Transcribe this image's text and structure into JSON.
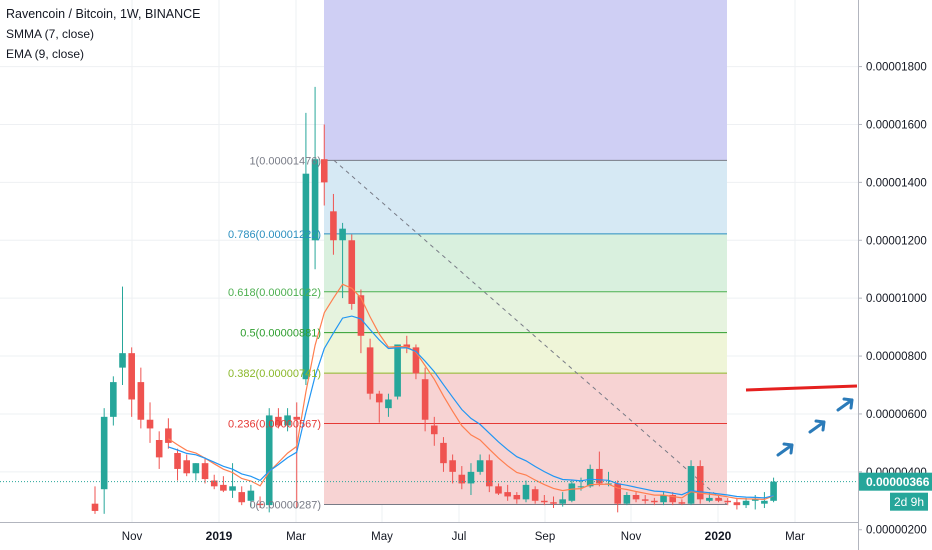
{
  "legend": {
    "title": "Ravencoin / Bitcoin, 1W, BINANCE",
    "smma": "SMMA (7, close)",
    "ema": "EMA (9, close)"
  },
  "colors": {
    "up": "#26a69a",
    "down": "#ef5350",
    "smma": "#2196f3",
    "ema": "#ff7f50",
    "grid": "#eef0f3",
    "axis_text": "#131722",
    "price_line": "#26a69a",
    "red_line": "#e5201f",
    "arrow": "#2b7bb9",
    "trend": "#787b86"
  },
  "chart_data": {
    "type": "candlestick",
    "title": "Ravencoin / Bitcoin, 1W, BINANCE",
    "x_tick_labels": [
      "Nov",
      "2019",
      "Mar",
      "May",
      "Jul",
      "Sep",
      "Nov",
      "2020",
      "Mar"
    ],
    "x_tick_bold": [
      "2019",
      "2020"
    ],
    "y_tick_labels": [
      "0.00001800",
      "0.00001600",
      "0.00001400",
      "0.00001200",
      "0.00001000",
      "0.00000800",
      "0.00000600",
      "0.00000400",
      "0.00000200"
    ],
    "y_ticks": [
      1.8e-05,
      1.6e-05,
      1.4e-05,
      1.2e-05,
      1e-05,
      8e-06,
      6e-06,
      4e-06,
      2e-06
    ],
    "ylim": [
      1.3e-06,
      2.03e-05
    ],
    "current_price": {
      "label": "0.00000366",
      "value": 3.66e-06
    },
    "countdown": "2d 9h",
    "candles": [
      {
        "o": 2.9,
        "h": 3.5,
        "l": 2.55,
        "c": 2.65
      },
      {
        "o": 3.4,
        "h": 6.2,
        "l": 2.55,
        "c": 5.9
      },
      {
        "o": 5.9,
        "h": 7.3,
        "l": 5.6,
        "c": 7.1
      },
      {
        "o": 7.6,
        "h": 10.4,
        "l": 7.0,
        "c": 8.1
      },
      {
        "o": 8.1,
        "h": 8.3,
        "l": 5.9,
        "c": 6.5
      },
      {
        "o": 7.1,
        "h": 7.6,
        "l": 5.5,
        "c": 5.8
      },
      {
        "o": 5.8,
        "h": 6.4,
        "l": 5.0,
        "c": 5.5
      },
      {
        "o": 5.1,
        "h": 5.4,
        "l": 4.1,
        "c": 4.5
      },
      {
        "o": 5.5,
        "h": 5.85,
        "l": 4.8,
        "c": 5.0
      },
      {
        "o": 4.65,
        "h": 4.8,
        "l": 3.7,
        "c": 4.1
      },
      {
        "o": 4.4,
        "h": 4.6,
        "l": 3.85,
        "c": 3.95
      },
      {
        "o": 3.95,
        "h": 4.3,
        "l": 3.7,
        "c": 4.3
      },
      {
        "o": 4.3,
        "h": 4.5,
        "l": 3.6,
        "c": 3.75
      },
      {
        "o": 3.7,
        "h": 3.9,
        "l": 3.4,
        "c": 3.5
      },
      {
        "o": 3.55,
        "h": 3.85,
        "l": 3.3,
        "c": 3.35
      },
      {
        "o": 3.35,
        "h": 4.3,
        "l": 3.1,
        "c": 3.5
      },
      {
        "o": 3.3,
        "h": 3.5,
        "l": 2.85,
        "c": 2.95
      },
      {
        "o": 3.0,
        "h": 3.55,
        "l": 2.8,
        "c": 3.35
      },
      {
        "o": 2.9,
        "h": 3.15,
        "l": 2.75,
        "c": 2.85
      },
      {
        "o": 2.85,
        "h": 6.2,
        "l": 2.6,
        "c": 5.95
      },
      {
        "o": 5.9,
        "h": 6.2,
        "l": 5.5,
        "c": 5.6
      },
      {
        "o": 5.6,
        "h": 6.2,
        "l": 5.4,
        "c": 5.95
      },
      {
        "o": 5.9,
        "h": 6.4,
        "l": 2.75,
        "c": 5.8
      },
      {
        "o": 7.2,
        "h": 16.4,
        "l": 7.0,
        "c": 14.3
      },
      {
        "o": 12.0,
        "h": 17.3,
        "l": 11.0,
        "c": 14.8
      },
      {
        "o": 14.8,
        "h": 16.0,
        "l": 13.2,
        "c": 14.0
      },
      {
        "o": 13.0,
        "h": 13.6,
        "l": 11.5,
        "c": 12.0
      },
      {
        "o": 12.0,
        "h": 12.6,
        "l": 10.0,
        "c": 12.4
      },
      {
        "o": 12.0,
        "h": 12.2,
        "l": 9.6,
        "c": 9.8
      },
      {
        "o": 10.1,
        "h": 10.3,
        "l": 8.1,
        "c": 8.7
      },
      {
        "o": 8.3,
        "h": 8.6,
        "l": 6.5,
        "c": 6.7
      },
      {
        "o": 6.7,
        "h": 6.8,
        "l": 5.7,
        "c": 6.4
      },
      {
        "o": 6.2,
        "h": 6.7,
        "l": 5.9,
        "c": 6.5
      },
      {
        "o": 6.6,
        "h": 8.4,
        "l": 6.5,
        "c": 8.4
      },
      {
        "o": 8.4,
        "h": 8.7,
        "l": 8.1,
        "c": 8.3
      },
      {
        "o": 8.3,
        "h": 8.4,
        "l": 7.2,
        "c": 7.4
      },
      {
        "o": 7.2,
        "h": 7.6,
        "l": 5.4,
        "c": 5.8
      },
      {
        "o": 5.6,
        "h": 5.9,
        "l": 4.9,
        "c": 5.3
      },
      {
        "o": 5.0,
        "h": 5.2,
        "l": 4.0,
        "c": 4.3
      },
      {
        "o": 4.4,
        "h": 4.6,
        "l": 3.6,
        "c": 4.0
      },
      {
        "o": 3.9,
        "h": 4.2,
        "l": 3.4,
        "c": 3.6
      },
      {
        "o": 3.6,
        "h": 4.3,
        "l": 3.2,
        "c": 4.0
      },
      {
        "o": 4.0,
        "h": 4.6,
        "l": 3.9,
        "c": 4.4
      },
      {
        "o": 4.4,
        "h": 4.6,
        "l": 3.3,
        "c": 3.5
      },
      {
        "o": 3.5,
        "h": 3.6,
        "l": 3.2,
        "c": 3.25
      },
      {
        "o": 3.3,
        "h": 3.55,
        "l": 3.0,
        "c": 3.15
      },
      {
        "o": 3.2,
        "h": 3.3,
        "l": 2.9,
        "c": 3.05
      },
      {
        "o": 3.05,
        "h": 3.7,
        "l": 2.95,
        "c": 3.55
      },
      {
        "o": 3.4,
        "h": 3.5,
        "l": 2.9,
        "c": 3.0
      },
      {
        "o": 3.0,
        "h": 3.2,
        "l": 2.85,
        "c": 2.95
      },
      {
        "o": 2.95,
        "h": 3.15,
        "l": 2.75,
        "c": 2.9
      },
      {
        "o": 2.9,
        "h": 3.3,
        "l": 2.8,
        "c": 3.05
      },
      {
        "o": 3.0,
        "h": 3.7,
        "l": 2.95,
        "c": 3.6
      },
      {
        "o": 3.5,
        "h": 3.8,
        "l": 3.35,
        "c": 3.5
      },
      {
        "o": 3.5,
        "h": 4.25,
        "l": 3.45,
        "c": 4.1
      },
      {
        "o": 4.1,
        "h": 4.7,
        "l": 3.5,
        "c": 3.6
      },
      {
        "o": 3.6,
        "h": 4.0,
        "l": 3.5,
        "c": 3.6
      },
      {
        "o": 3.6,
        "h": 3.7,
        "l": 2.6,
        "c": 2.9
      },
      {
        "o": 2.9,
        "h": 3.3,
        "l": 2.85,
        "c": 3.2
      },
      {
        "o": 3.2,
        "h": 3.3,
        "l": 2.95,
        "c": 3.05
      },
      {
        "o": 3.05,
        "h": 3.2,
        "l": 2.9,
        "c": 3.0
      },
      {
        "o": 3.0,
        "h": 3.1,
        "l": 2.85,
        "c": 2.95
      },
      {
        "o": 2.95,
        "h": 3.3,
        "l": 2.85,
        "c": 3.2
      },
      {
        "o": 3.2,
        "h": 3.3,
        "l": 2.85,
        "c": 2.95
      },
      {
        "o": 2.95,
        "h": 3.05,
        "l": 2.85,
        "c": 2.9
      },
      {
        "o": 2.9,
        "h": 4.4,
        "l": 2.85,
        "c": 4.2
      },
      {
        "o": 4.2,
        "h": 4.4,
        "l": 2.9,
        "c": 3.05
      },
      {
        "o": 3.0,
        "h": 3.3,
        "l": 2.95,
        "c": 3.1
      },
      {
        "o": 3.1,
        "h": 3.2,
        "l": 2.95,
        "c": 3.0
      },
      {
        "o": 3.0,
        "h": 3.1,
        "l": 2.85,
        "c": 2.95
      },
      {
        "o": 2.95,
        "h": 3.1,
        "l": 2.7,
        "c": 2.85
      },
      {
        "o": 2.85,
        "h": 3.1,
        "l": 2.75,
        "c": 3.0
      },
      {
        "o": 3.0,
        "h": 3.2,
        "l": 2.7,
        "c": 3.05
      },
      {
        "o": 2.9,
        "h": 3.3,
        "l": 2.75,
        "c": 3.0
      },
      {
        "o": 3.0,
        "h": 3.8,
        "l": 2.95,
        "c": 3.66
      }
    ],
    "fibonacci": {
      "levels": [
        {
          "label": "1(0.00001476)",
          "value": 1.476e-05,
          "color": "#787b86",
          "fill": "#e3e3e3"
        },
        {
          "label": "0.786(0.00001222)",
          "value": 1.222e-05,
          "color": "#2b8fbf",
          "fill": "#d6e9f4"
        },
        {
          "label": "0.618(0.00001022)",
          "value": 1.022e-05,
          "color": "#4caf50",
          "fill": "#d9f0de"
        },
        {
          "label": "0.5(0.00000881)",
          "value": 8.81e-06,
          "color": "#2e9e2e",
          "fill": "#e6f3df"
        },
        {
          "label": "0.382(0.00000741)",
          "value": 7.41e-06,
          "color": "#8bb82a",
          "fill": "#eff5d8"
        },
        {
          "label": "0.236(0.00000567)",
          "value": 5.67e-06,
          "color": "#e53935",
          "fill": "#f7d3d3"
        },
        {
          "label": "0(0.00000287)",
          "value": 2.87e-06,
          "color": "#787b86",
          "fill": "#f7d3d3"
        }
      ],
      "top_band_fill": "#cfcff4"
    }
  }
}
